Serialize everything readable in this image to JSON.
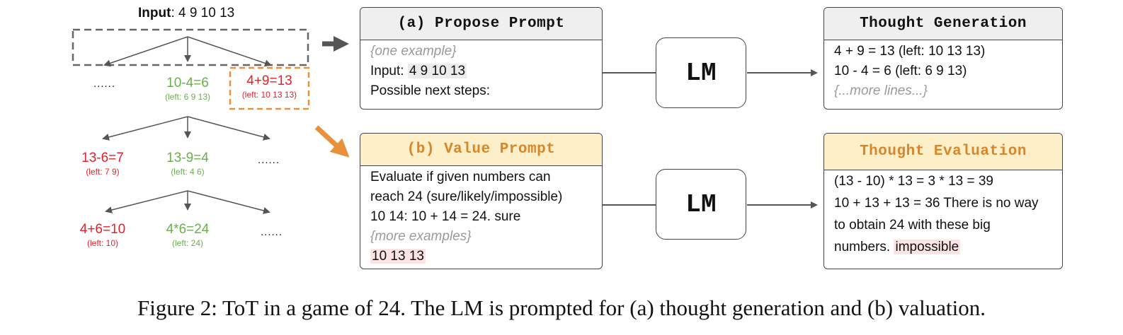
{
  "tree": {
    "input_label": "Input",
    "input_value": ": 4 9 10 13",
    "level1": [
      {
        "text": "......",
        "kind": "dots"
      },
      {
        "eq": "10-4=6",
        "left": "(left: 6 9 13)",
        "color": "green"
      },
      {
        "eq": "4+9=13",
        "left": "(left: 10 13 13)",
        "color": "red"
      }
    ],
    "level2": [
      {
        "eq": "13-6=7",
        "left": "(left: 7 9)",
        "color": "red"
      },
      {
        "eq": "13-9=4",
        "left": "(left: 4 6)",
        "color": "green"
      },
      {
        "text": "......",
        "kind": "dots"
      }
    ],
    "level3": [
      {
        "eq": "4+6=10",
        "left": "(left: 10)",
        "color": "red"
      },
      {
        "eq": "4*6=24",
        "left": "(left: 24)",
        "color": "green"
      },
      {
        "text": "......",
        "kind": "dots"
      }
    ]
  },
  "propose": {
    "title": "(a) Propose Prompt",
    "line1": "{one example}",
    "line2_label": "Input: ",
    "line2_value": "4 9 10 13",
    "line3": "Possible next steps:"
  },
  "thought_gen": {
    "title": "Thought Generation",
    "line1": "4 + 9 = 13 (left: 10 13 13)",
    "line2": "10 - 4 = 6 (left: 6 9 13)",
    "line3": "{...more lines...}"
  },
  "value": {
    "title": "(b) Value Prompt",
    "line1": "Evaluate if given numbers can",
    "line2": "reach 24 (sure/likely/impossible)",
    "line3": "10 14: 10 + 14 = 24. sure",
    "line4": "{more examples}",
    "line5": "10 13 13"
  },
  "thought_eval": {
    "title": "Thought Evaluation",
    "line1": "(13 - 10) * 13 = 3 * 13 = 39",
    "line2": "10 + 13 + 13 = 36 There is no way",
    "line3": "to obtain 24 with these big",
    "line4_a": "numbers. ",
    "line4_b": "impossible"
  },
  "lm_top": "LM",
  "lm_bottom": "LM",
  "colors": {
    "green": "#6ab04c",
    "red": "#e8202a",
    "orange": "#e9913a",
    "arrow_grey": "#666666"
  },
  "caption": "Figure 2: ToT in a game of 24. The LM is prompted for (a) thought generation and (b) valuation."
}
